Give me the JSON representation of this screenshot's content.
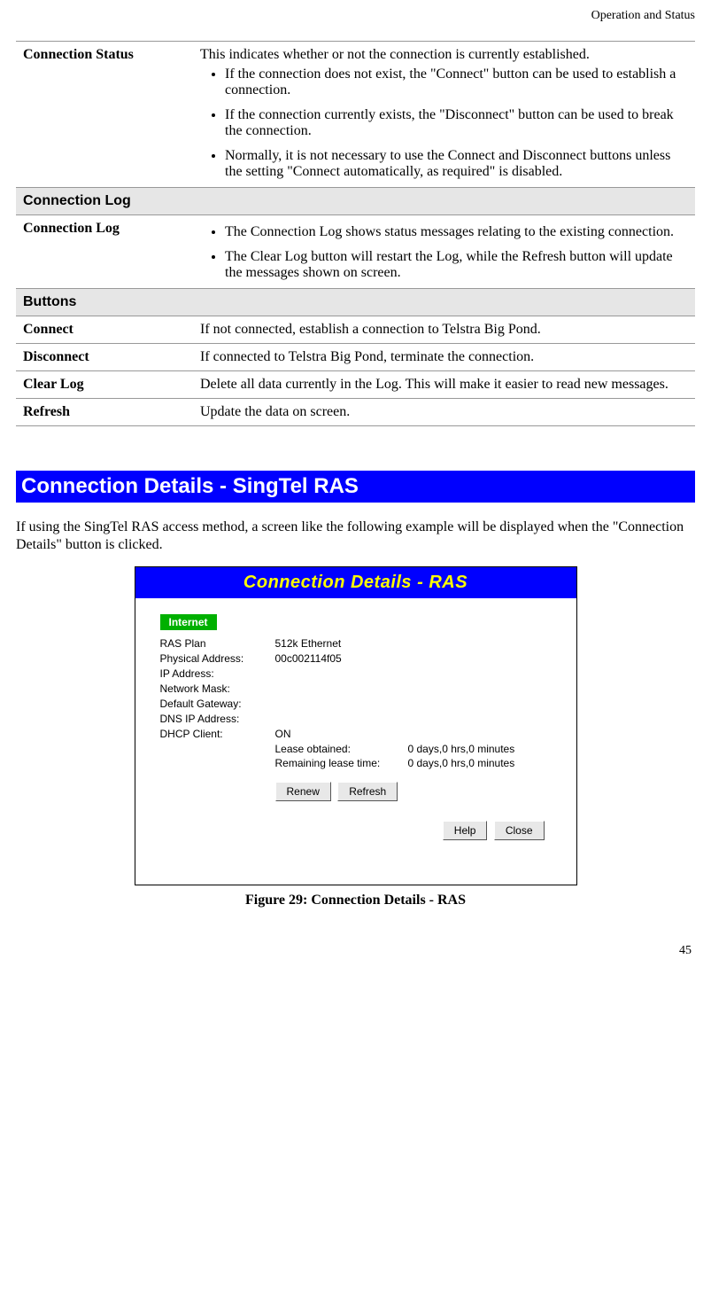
{
  "header": {
    "section": "Operation and Status"
  },
  "pagenum": "45",
  "table": {
    "rows": [
      {
        "label": "Connection Status",
        "intro": "This indicates whether or not the connection is currently established.",
        "bullets": [
          "If the connection does not exist, the \"Connect\" button can be used to establish a connection.",
          "If the connection currently exists, the \"Disconnect\" button can be used to break the connection.",
          "Normally, it is not necessary to use the Connect and Disconnect buttons unless the setting \"Connect automatically, as required\" is disabled."
        ]
      }
    ],
    "section1": {
      "title": "Connection Log"
    },
    "row_conn_log": {
      "label": "Connection Log",
      "bullets": [
        "The Connection Log shows status messages relating to the existing connection.",
        "The Clear Log button will restart the Log, while the Refresh button will update the messages shown on screen."
      ]
    },
    "section2": {
      "title": "Buttons"
    },
    "btn_rows": {
      "connect": {
        "label": "Connect",
        "desc": "If not connected, establish a connection to Telstra Big Pond."
      },
      "disconnect": {
        "label": "Disconnect",
        "desc": "If connected to Telstra Big Pond, terminate the connection."
      },
      "clearlog": {
        "label": "Clear Log",
        "desc": "Delete all data currently in the Log. This will make it easier to read new messages."
      },
      "refresh": {
        "label": "Refresh",
        "desc": "Update the data on screen."
      }
    }
  },
  "heading": "Connection Details - SingTel RAS",
  "intro_para": "If using the SingTel RAS access method, a screen like the following example will be displayed when the \"Connection Details\" button is clicked.",
  "shot": {
    "title": "Connection Details - RAS",
    "badge": "Internet",
    "fields": {
      "ras_plan": {
        "k": "RAS Plan",
        "v": "512k Ethernet"
      },
      "phys_addr": {
        "k": "Physical Address:",
        "v": "00c002114f05"
      },
      "ip_addr": {
        "k": "IP Address:",
        "v": ""
      },
      "net_mask": {
        "k": "Network Mask:",
        "v": ""
      },
      "def_gw": {
        "k": "Default Gateway:",
        "v": ""
      },
      "dns_ip": {
        "k": "DNS IP Address:",
        "v": ""
      },
      "dhcp": {
        "k": "DHCP Client:",
        "v": "ON"
      }
    },
    "lease": {
      "obtained": {
        "k": "Lease obtained:",
        "v": "0 days,0 hrs,0 minutes"
      },
      "remaining": {
        "k": "Remaining lease time:",
        "v": "0 days,0 hrs,0 minutes"
      }
    },
    "buttons": {
      "renew": "Renew",
      "refresh": "Refresh",
      "help": "Help",
      "close": "Close"
    }
  },
  "figure_caption": "Figure 29: Connection Details - RAS",
  "colors": {
    "heading_bg": "#0000ff",
    "heading_fg": "#ffffff",
    "section_bg": "#e6e6e6",
    "shot_title_bg": "#0000ff",
    "shot_title_fg": "#ffff00",
    "badge_bg": "#00b000"
  }
}
